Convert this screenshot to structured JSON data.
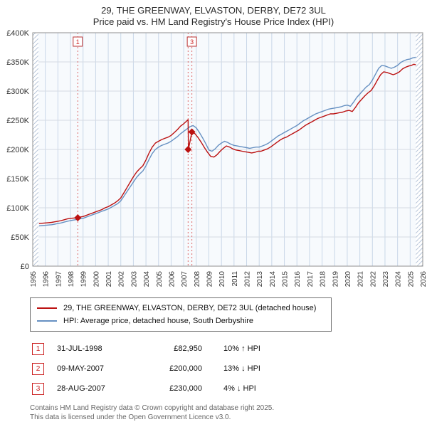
{
  "title": {
    "line1": "29, THE GREENWAY, ELVASTON, DERBY, DE72 3UL",
    "line2": "Price paid vs. HM Land Registry's House Price Index (HPI)"
  },
  "chart_data": {
    "type": "line",
    "x_range": [
      1995,
      2026
    ],
    "ylim": [
      0,
      400
    ],
    "values_unit": "GBP thousands",
    "y_tick_values": [
      0,
      50,
      100,
      150,
      200,
      250,
      300,
      350,
      400
    ],
    "y_tick_labels": [
      "£0",
      "£50K",
      "£100K",
      "£150K",
      "£200K",
      "£250K",
      "£300K",
      "£350K",
      "£400K"
    ],
    "x_tick_years": [
      1995,
      1996,
      1997,
      1998,
      1999,
      2000,
      2001,
      2002,
      2003,
      2004,
      2005,
      2006,
      2007,
      2008,
      2009,
      2010,
      2011,
      2012,
      2013,
      2014,
      2015,
      2016,
      2017,
      2018,
      2019,
      2020,
      2021,
      2022,
      2023,
      2024,
      2025,
      2026
    ],
    "grid": true,
    "legend_position": "below",
    "hatch_regions": [
      [
        1995,
        1995.45
      ],
      [
        2025.45,
        2026
      ]
    ],
    "series": [
      {
        "name": "29, THE GREENWAY, ELVASTON, DERBY, DE72 3UL (detached house)",
        "color": "#bb1111",
        "points": [
          [
            1995.5,
            73
          ],
          [
            1995.75,
            73.5
          ],
          [
            1996,
            74
          ],
          [
            1996.25,
            74.5
          ],
          [
            1996.5,
            75
          ],
          [
            1996.75,
            76
          ],
          [
            1997,
            77
          ],
          [
            1997.25,
            78
          ],
          [
            1997.5,
            79.5
          ],
          [
            1997.75,
            81
          ],
          [
            1998,
            82
          ],
          [
            1998.25,
            82.5
          ],
          [
            1998.58,
            83
          ],
          [
            1998.75,
            84
          ],
          [
            1999,
            85
          ],
          [
            1999.25,
            87
          ],
          [
            1999.5,
            89
          ],
          [
            1999.75,
            91
          ],
          [
            2000,
            93
          ],
          [
            2000.25,
            95
          ],
          [
            2000.5,
            97
          ],
          [
            2000.75,
            100
          ],
          [
            2001,
            102
          ],
          [
            2001.25,
            105
          ],
          [
            2001.5,
            108
          ],
          [
            2001.75,
            112
          ],
          [
            2002,
            117
          ],
          [
            2002.25,
            126
          ],
          [
            2002.5,
            135
          ],
          [
            2002.75,
            144
          ],
          [
            2003,
            153
          ],
          [
            2003.25,
            161
          ],
          [
            2003.5,
            167
          ],
          [
            2003.75,
            172
          ],
          [
            2004,
            182
          ],
          [
            2004.25,
            194
          ],
          [
            2004.5,
            204
          ],
          [
            2004.75,
            211
          ],
          [
            2005,
            214
          ],
          [
            2005.25,
            217
          ],
          [
            2005.5,
            219
          ],
          [
            2005.75,
            221
          ],
          [
            2006,
            224
          ],
          [
            2006.25,
            229
          ],
          [
            2006.5,
            234
          ],
          [
            2006.75,
            240
          ],
          [
            2007,
            244
          ],
          [
            2007.2,
            248
          ],
          [
            2007.35,
            251
          ],
          [
            2007.38,
            200
          ],
          [
            2007.65,
            230
          ],
          [
            2007.9,
            227
          ],
          [
            2008.15,
            220
          ],
          [
            2008.4,
            212
          ],
          [
            2008.65,
            203
          ],
          [
            2008.9,
            195
          ],
          [
            2009.15,
            188
          ],
          [
            2009.4,
            187
          ],
          [
            2009.65,
            191
          ],
          [
            2009.9,
            197
          ],
          [
            2010.15,
            202
          ],
          [
            2010.4,
            206
          ],
          [
            2010.65,
            204
          ],
          [
            2010.9,
            201
          ],
          [
            2011.15,
            199
          ],
          [
            2011.4,
            198
          ],
          [
            2011.65,
            197
          ],
          [
            2011.9,
            196
          ],
          [
            2012.15,
            195
          ],
          [
            2012.4,
            194
          ],
          [
            2012.65,
            195
          ],
          [
            2012.9,
            197
          ],
          [
            2013.15,
            197
          ],
          [
            2013.4,
            199
          ],
          [
            2013.65,
            201
          ],
          [
            2013.9,
            204
          ],
          [
            2014.15,
            208
          ],
          [
            2014.4,
            212
          ],
          [
            2014.65,
            216
          ],
          [
            2014.9,
            219
          ],
          [
            2015.15,
            221
          ],
          [
            2015.4,
            224
          ],
          [
            2015.65,
            227
          ],
          [
            2015.9,
            230
          ],
          [
            2016.15,
            233
          ],
          [
            2016.4,
            237
          ],
          [
            2016.65,
            241
          ],
          [
            2016.9,
            244
          ],
          [
            2017.15,
            247
          ],
          [
            2017.4,
            250
          ],
          [
            2017.65,
            253
          ],
          [
            2017.9,
            255
          ],
          [
            2018.15,
            257
          ],
          [
            2018.4,
            259
          ],
          [
            2018.65,
            261
          ],
          [
            2018.9,
            261
          ],
          [
            2019.15,
            262
          ],
          [
            2019.4,
            263
          ],
          [
            2019.65,
            264
          ],
          [
            2019.9,
            266
          ],
          [
            2020.15,
            267
          ],
          [
            2020.4,
            265
          ],
          [
            2020.65,
            272
          ],
          [
            2020.9,
            280
          ],
          [
            2021.15,
            286
          ],
          [
            2021.4,
            292
          ],
          [
            2021.65,
            297
          ],
          [
            2021.9,
            301
          ],
          [
            2022.15,
            309
          ],
          [
            2022.4,
            319
          ],
          [
            2022.65,
            328
          ],
          [
            2022.9,
            333
          ],
          [
            2023.15,
            332
          ],
          [
            2023.4,
            330
          ],
          [
            2023.65,
            328
          ],
          [
            2023.9,
            330
          ],
          [
            2024.15,
            333
          ],
          [
            2024.4,
            338
          ],
          [
            2024.65,
            341
          ],
          [
            2024.9,
            343
          ],
          [
            2025.1,
            344
          ],
          [
            2025.3,
            346
          ],
          [
            2025.45,
            345
          ]
        ]
      },
      {
        "name": "HPI: Average price, detached house, South Derbyshire",
        "color": "#6690c2",
        "points": [
          [
            1995.5,
            69
          ],
          [
            1995.75,
            69.5
          ],
          [
            1996,
            70
          ],
          [
            1996.25,
            70.5
          ],
          [
            1996.5,
            71
          ],
          [
            1996.75,
            72
          ],
          [
            1997,
            73
          ],
          [
            1997.25,
            74
          ],
          [
            1997.5,
            75.5
          ],
          [
            1997.75,
            77
          ],
          [
            1998,
            78
          ],
          [
            1998.25,
            79
          ],
          [
            1998.5,
            80
          ],
          [
            1998.75,
            81
          ],
          [
            1999,
            82
          ],
          [
            1999.25,
            84
          ],
          [
            1999.5,
            86
          ],
          [
            1999.75,
            88
          ],
          [
            2000,
            90
          ],
          [
            2000.25,
            92
          ],
          [
            2000.5,
            94
          ],
          [
            2000.75,
            96
          ],
          [
            2001,
            98
          ],
          [
            2001.25,
            101
          ],
          [
            2001.5,
            104
          ],
          [
            2001.75,
            107
          ],
          [
            2002,
            112
          ],
          [
            2002.25,
            120
          ],
          [
            2002.5,
            128
          ],
          [
            2002.75,
            136
          ],
          [
            2003,
            144
          ],
          [
            2003.25,
            152
          ],
          [
            2003.5,
            158
          ],
          [
            2003.75,
            163
          ],
          [
            2004,
            172
          ],
          [
            2004.25,
            183
          ],
          [
            2004.5,
            193
          ],
          [
            2004.75,
            200
          ],
          [
            2005,
            204
          ],
          [
            2005.25,
            207
          ],
          [
            2005.5,
            209
          ],
          [
            2005.75,
            211
          ],
          [
            2006,
            214
          ],
          [
            2006.25,
            218
          ],
          [
            2006.5,
            222
          ],
          [
            2006.75,
            227
          ],
          [
            2007,
            231
          ],
          [
            2007.25,
            235
          ],
          [
            2007.5,
            239
          ],
          [
            2007.75,
            241
          ],
          [
            2008,
            237
          ],
          [
            2008.25,
            229
          ],
          [
            2008.5,
            220
          ],
          [
            2008.75,
            210
          ],
          [
            2009,
            199
          ],
          [
            2009.25,
            197
          ],
          [
            2009.5,
            201
          ],
          [
            2009.75,
            207
          ],
          [
            2010,
            211
          ],
          [
            2010.25,
            214
          ],
          [
            2010.5,
            212
          ],
          [
            2010.75,
            209
          ],
          [
            2011,
            207
          ],
          [
            2011.25,
            206
          ],
          [
            2011.5,
            205
          ],
          [
            2011.75,
            204
          ],
          [
            2012,
            203
          ],
          [
            2012.25,
            202
          ],
          [
            2012.5,
            203
          ],
          [
            2012.75,
            204
          ],
          [
            2013,
            204
          ],
          [
            2013.25,
            206
          ],
          [
            2013.5,
            208
          ],
          [
            2013.75,
            211
          ],
          [
            2014,
            215
          ],
          [
            2014.25,
            219
          ],
          [
            2014.5,
            223
          ],
          [
            2014.75,
            226
          ],
          [
            2015,
            229
          ],
          [
            2015.25,
            232
          ],
          [
            2015.5,
            235
          ],
          [
            2015.75,
            238
          ],
          [
            2016,
            241
          ],
          [
            2016.25,
            245
          ],
          [
            2016.5,
            249
          ],
          [
            2016.75,
            252
          ],
          [
            2017,
            255
          ],
          [
            2017.25,
            258
          ],
          [
            2017.5,
            261
          ],
          [
            2017.75,
            263
          ],
          [
            2018,
            265
          ],
          [
            2018.25,
            267
          ],
          [
            2018.5,
            269
          ],
          [
            2018.75,
            270
          ],
          [
            2019,
            271
          ],
          [
            2019.25,
            272
          ],
          [
            2019.5,
            273
          ],
          [
            2019.75,
            275
          ],
          [
            2020,
            276
          ],
          [
            2020.25,
            274
          ],
          [
            2020.5,
            281
          ],
          [
            2020.75,
            289
          ],
          [
            2021,
            295
          ],
          [
            2021.25,
            301
          ],
          [
            2021.5,
            307
          ],
          [
            2021.75,
            311
          ],
          [
            2022,
            319
          ],
          [
            2022.25,
            329
          ],
          [
            2022.5,
            339
          ],
          [
            2022.75,
            344
          ],
          [
            2023,
            343
          ],
          [
            2023.25,
            341
          ],
          [
            2023.5,
            339
          ],
          [
            2023.75,
            341
          ],
          [
            2024,
            344
          ],
          [
            2024.25,
            349
          ],
          [
            2024.5,
            352
          ],
          [
            2024.75,
            354
          ],
          [
            2025,
            355
          ],
          [
            2025.2,
            357
          ],
          [
            2025.45,
            358
          ]
        ]
      }
    ],
    "sales": [
      {
        "label": "1",
        "x": 1998.58,
        "value": 82.95,
        "show_flag": true
      },
      {
        "label": "2",
        "x": 2007.35,
        "value": 200,
        "show_flag": false
      },
      {
        "label": "3",
        "x": 2007.65,
        "value": 230,
        "show_flag": true
      }
    ]
  },
  "legend": {
    "items": [
      {
        "label": "29, THE GREENWAY, ELVASTON, DERBY, DE72 3UL (detached house)",
        "color": "#bb1111"
      },
      {
        "label": "HPI: Average price, detached house, South Derbyshire",
        "color": "#6690c2"
      }
    ]
  },
  "table": {
    "rows": [
      {
        "num": "1",
        "date": "31-JUL-1998",
        "price": "£82,950",
        "hpi": "10% ↑ HPI"
      },
      {
        "num": "2",
        "date": "09-MAY-2007",
        "price": "£200,000",
        "hpi": "13% ↓ HPI"
      },
      {
        "num": "3",
        "date": "28-AUG-2007",
        "price": "£230,000",
        "hpi": "4% ↓ HPI"
      }
    ]
  },
  "footer": {
    "line1": "Contains HM Land Registry data © Crown copyright and database right 2025.",
    "line2": "This data is licensed under the Open Government Licence v3.0."
  }
}
